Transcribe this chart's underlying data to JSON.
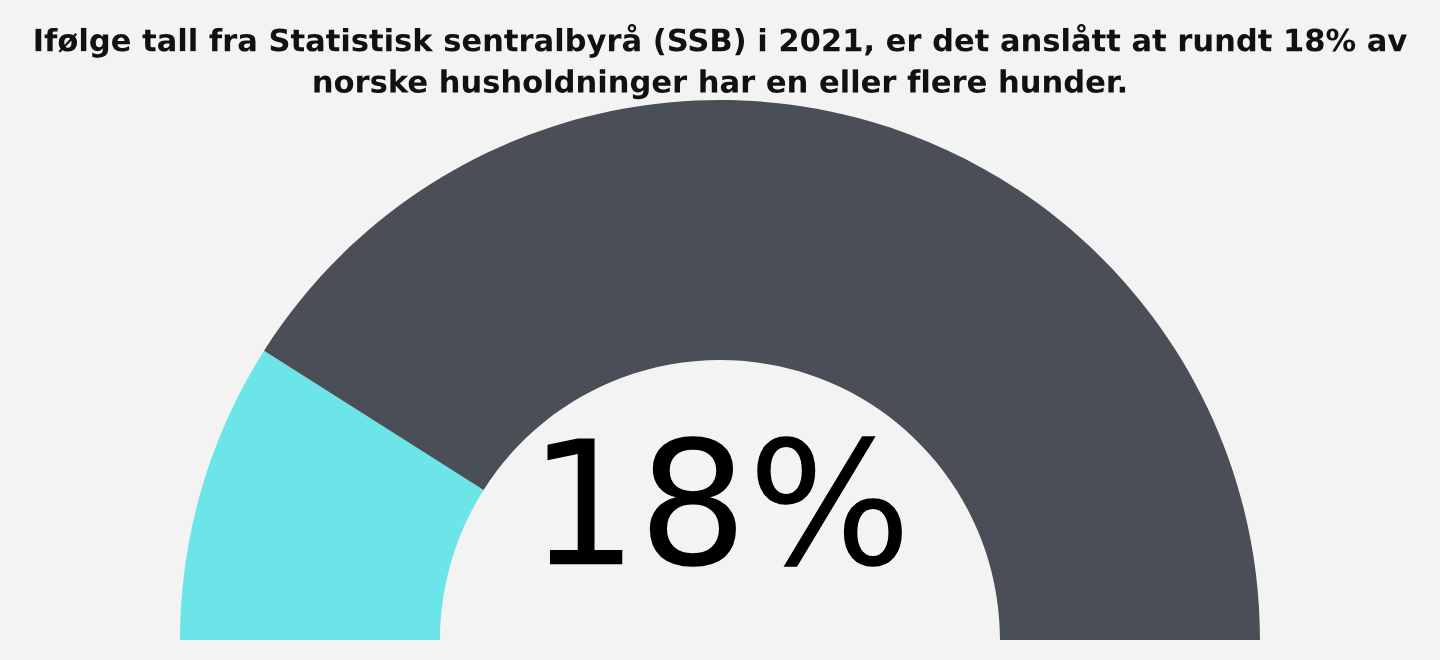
{
  "chart_data": {
    "type": "donut",
    "title": "Ifølge tall fra Statistisk sentralbyrå (SSB) i 2021, er det anslått at rundt 18% av\nnorske husholdninger har en eller flere hunder.",
    "categories": [
      null,
      null
    ],
    "values": [
      18,
      82
    ],
    "colors": [
      "#6ce5e8",
      "#4a4f57"
    ],
    "annotations": [
      "18%"
    ]
  }
}
